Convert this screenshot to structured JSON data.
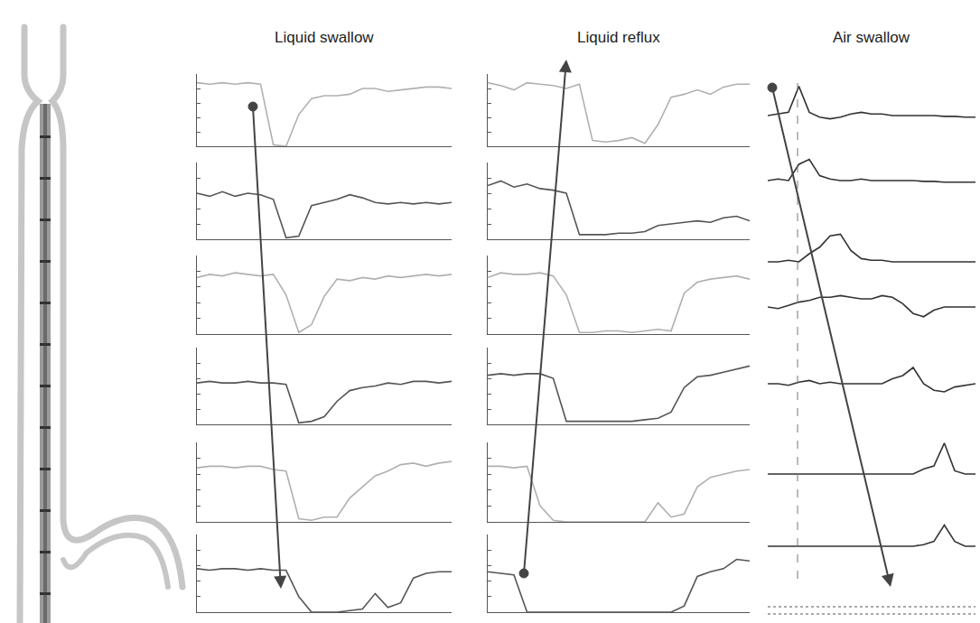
{
  "chart_data": [
    {
      "type": "line",
      "title": "Liquid swallow",
      "tick_labels": false,
      "x": [
        0,
        5,
        10,
        15,
        20,
        25,
        30,
        35,
        40,
        45,
        50,
        55,
        60,
        65,
        70,
        75,
        80,
        85,
        90,
        95,
        100
      ],
      "xlim": [
        0,
        100
      ],
      "ylim": [
        0,
        5
      ],
      "yticks": [
        0,
        1,
        2,
        3,
        4,
        5
      ],
      "series": [
        {
          "color": "#b0b0b0",
          "values": [
            4.4,
            4.3,
            4.4,
            4.3,
            4.4,
            4.3,
            0.1,
            0.0,
            2.2,
            3.3,
            3.5,
            3.5,
            3.6,
            4.0,
            4.0,
            3.8,
            3.9,
            4.0,
            4.1,
            4.1,
            4.0
          ]
        },
        {
          "color": "#555555",
          "values": [
            3.0,
            2.8,
            3.1,
            2.8,
            3.0,
            2.9,
            2.6,
            0.1,
            0.2,
            2.2,
            2.4,
            2.6,
            2.9,
            2.7,
            2.4,
            2.3,
            2.4,
            2.3,
            2.4,
            2.3,
            2.4
          ]
        },
        {
          "color": "#b0b0b0",
          "values": [
            3.6,
            3.8,
            3.7,
            3.9,
            3.8,
            3.7,
            3.8,
            2.5,
            0.1,
            0.6,
            2.4,
            3.5,
            3.4,
            3.6,
            3.5,
            3.7,
            3.6,
            3.7,
            3.8,
            3.7,
            3.8
          ]
        },
        {
          "color": "#555555",
          "values": [
            2.7,
            2.8,
            2.7,
            2.7,
            2.8,
            2.7,
            2.7,
            2.6,
            0.1,
            0.2,
            0.5,
            1.5,
            2.2,
            2.4,
            2.5,
            2.7,
            2.6,
            2.8,
            2.8,
            2.7,
            2.8
          ]
        },
        {
          "color": "#b0b0b0",
          "values": [
            3.4,
            3.5,
            3.5,
            3.4,
            3.5,
            3.5,
            3.3,
            3.2,
            0.2,
            0.1,
            0.3,
            0.3,
            1.5,
            2.2,
            2.9,
            3.2,
            3.6,
            3.7,
            3.5,
            3.7,
            3.8
          ]
        },
        {
          "color": "#555555",
          "values": [
            2.8,
            2.7,
            2.8,
            2.8,
            2.7,
            2.8,
            2.7,
            2.7,
            1.0,
            0.0,
            0.0,
            0.0,
            0.1,
            0.2,
            1.2,
            0.3,
            0.6,
            2.2,
            2.5,
            2.6,
            2.6
          ]
        }
      ]
    },
    {
      "type": "line",
      "title": "Liquid reflux",
      "tick_labels": false,
      "x": [
        0,
        5,
        10,
        15,
        20,
        25,
        30,
        35,
        40,
        45,
        50,
        55,
        60,
        65,
        70,
        75,
        80,
        85,
        90,
        95,
        100
      ],
      "xlim": [
        0,
        100
      ],
      "ylim": [
        0,
        5
      ],
      "yticks": [
        0,
        1,
        2,
        3,
        4,
        5
      ],
      "series": [
        {
          "color": "#b0b0b0",
          "values": [
            4.4,
            4.2,
            3.9,
            4.4,
            4.3,
            4.2,
            4.0,
            4.3,
            0.4,
            0.3,
            0.4,
            0.6,
            0.2,
            1.5,
            3.4,
            3.6,
            3.9,
            3.6,
            4.1,
            4.3,
            4.3
          ]
        },
        {
          "color": "#555555",
          "values": [
            3.5,
            3.8,
            3.4,
            3.6,
            3.3,
            3.2,
            3.0,
            0.3,
            0.3,
            0.3,
            0.4,
            0.4,
            0.5,
            0.9,
            1.0,
            1.1,
            1.2,
            1.1,
            1.4,
            1.5,
            1.2
          ]
        },
        {
          "color": "#b0b0b0",
          "values": [
            3.6,
            3.9,
            3.8,
            3.8,
            3.9,
            3.7,
            2.5,
            0.1,
            0.1,
            0.2,
            0.2,
            0.1,
            0.2,
            0.3,
            0.2,
            2.6,
            3.3,
            3.5,
            3.6,
            3.7,
            3.5
          ]
        },
        {
          "color": "#555555",
          "values": [
            3.2,
            3.3,
            3.2,
            3.3,
            3.3,
            3.0,
            0.2,
            0.2,
            0.2,
            0.2,
            0.2,
            0.2,
            0.3,
            0.4,
            0.8,
            2.4,
            3.1,
            3.2,
            3.4,
            3.6,
            3.8
          ]
        },
        {
          "color": "#b0b0b0",
          "values": [
            3.5,
            3.5,
            3.4,
            3.5,
            1.0,
            0.1,
            0.0,
            0.0,
            0.0,
            0.0,
            0.0,
            0.0,
            0.0,
            1.2,
            0.3,
            0.5,
            2.2,
            2.8,
            3.0,
            3.2,
            3.3
          ]
        },
        {
          "color": "#555555",
          "values": [
            2.6,
            2.5,
            2.4,
            0.0,
            0.0,
            0.0,
            0.0,
            0.0,
            0.0,
            0.0,
            0.0,
            0.0,
            0.0,
            0.0,
            0.0,
            0.4,
            2.3,
            2.6,
            2.8,
            3.4,
            3.3
          ]
        }
      ]
    },
    {
      "type": "line",
      "title": "Air swallow",
      "tick_labels": false,
      "x": [
        0,
        5,
        10,
        15,
        20,
        25,
        30,
        35,
        40,
        45,
        50,
        55,
        60,
        65,
        70,
        75,
        80,
        85,
        90,
        95,
        100
      ],
      "xlim": [
        0,
        100
      ],
      "ylim": [
        0,
        5
      ],
      "series": [
        {
          "color": "#333333",
          "values": [
            1.0,
            1.1,
            1.2,
            2.8,
            1.2,
            0.9,
            0.8,
            0.9,
            1.1,
            1.2,
            1.1,
            1.1,
            1.0,
            1.0,
            1.0,
            1.0,
            1.0,
            0.95,
            0.95,
            0.9,
            0.9
          ]
        },
        {
          "color": "#333333",
          "values": [
            1.0,
            1.1,
            1.0,
            2.0,
            2.3,
            1.3,
            1.1,
            1.0,
            1.0,
            1.1,
            1.0,
            1.0,
            1.0,
            1.0,
            1.0,
            0.95,
            0.95,
            0.9,
            0.9,
            0.9,
            0.9
          ]
        },
        {
          "color": "#333333",
          "values": [
            1.0,
            1.0,
            1.1,
            1.0,
            1.5,
            1.9,
            2.6,
            2.7,
            1.7,
            1.2,
            1.1,
            1.1,
            1.0,
            1.0,
            1.0,
            1.0,
            1.0,
            1.0,
            1.0,
            1.0,
            1.0
          ]
        },
        {
          "color": "#333333",
          "values": [
            1.0,
            0.9,
            1.1,
            1.3,
            1.4,
            1.6,
            1.6,
            1.7,
            1.6,
            1.5,
            1.5,
            1.7,
            1.6,
            1.2,
            0.6,
            0.4,
            0.8,
            1.0,
            1.0,
            1.0,
            1.0
          ]
        },
        {
          "color": "#333333",
          "values": [
            1.0,
            1.0,
            0.9,
            1.1,
            1.2,
            1.0,
            1.1,
            1.0,
            1.0,
            1.0,
            1.0,
            1.0,
            1.3,
            1.5,
            2.0,
            1.0,
            0.6,
            0.5,
            0.8,
            0.9,
            1.0
          ]
        },
        {
          "color": "#333333",
          "values": [
            1.0,
            1.0,
            1.0,
            1.0,
            1.0,
            1.0,
            1.0,
            1.0,
            1.0,
            1.0,
            1.0,
            1.0,
            1.0,
            1.0,
            1.0,
            1.3,
            1.5,
            2.9,
            1.2,
            1.0,
            1.0
          ]
        },
        {
          "color": "#333333",
          "values": [
            1.0,
            1.0,
            1.0,
            1.0,
            1.0,
            1.0,
            1.0,
            1.0,
            1.0,
            1.0,
            1.0,
            1.0,
            1.0,
            1.0,
            1.0,
            1.1,
            1.3,
            2.3,
            1.3,
            1.0,
            1.0
          ]
        }
      ]
    }
  ]
}
